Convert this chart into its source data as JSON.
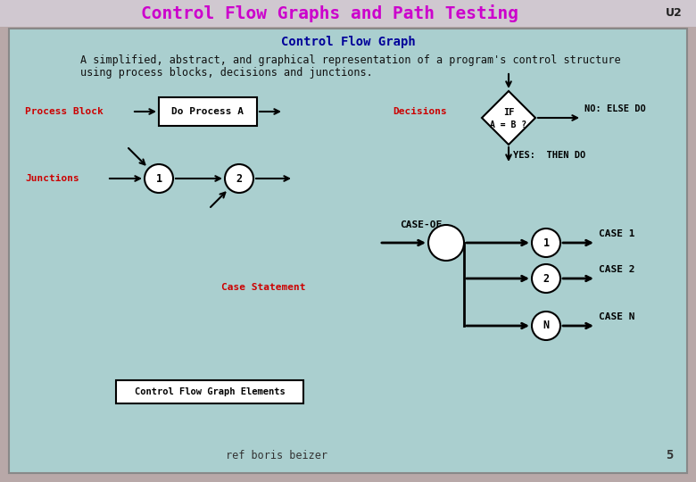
{
  "title": "Control Flow Graphs and Path Testing",
  "unit_label": "U2",
  "subtitle": "Control Flow Graph",
  "description_line1": "A simplified, abstract, and graphical representation of a program's control structure",
  "description_line2": "using process blocks, decisions and junctions.",
  "title_color": "#cc00cc",
  "subtitle_color": "#000099",
  "title_bg": "#d0c8d0",
  "content_bg": "#aacfcf",
  "label_color": "#cc0000",
  "outer_border_color": "#b8a8a8",
  "fig_width": 7.8,
  "fig_height": 5.4
}
